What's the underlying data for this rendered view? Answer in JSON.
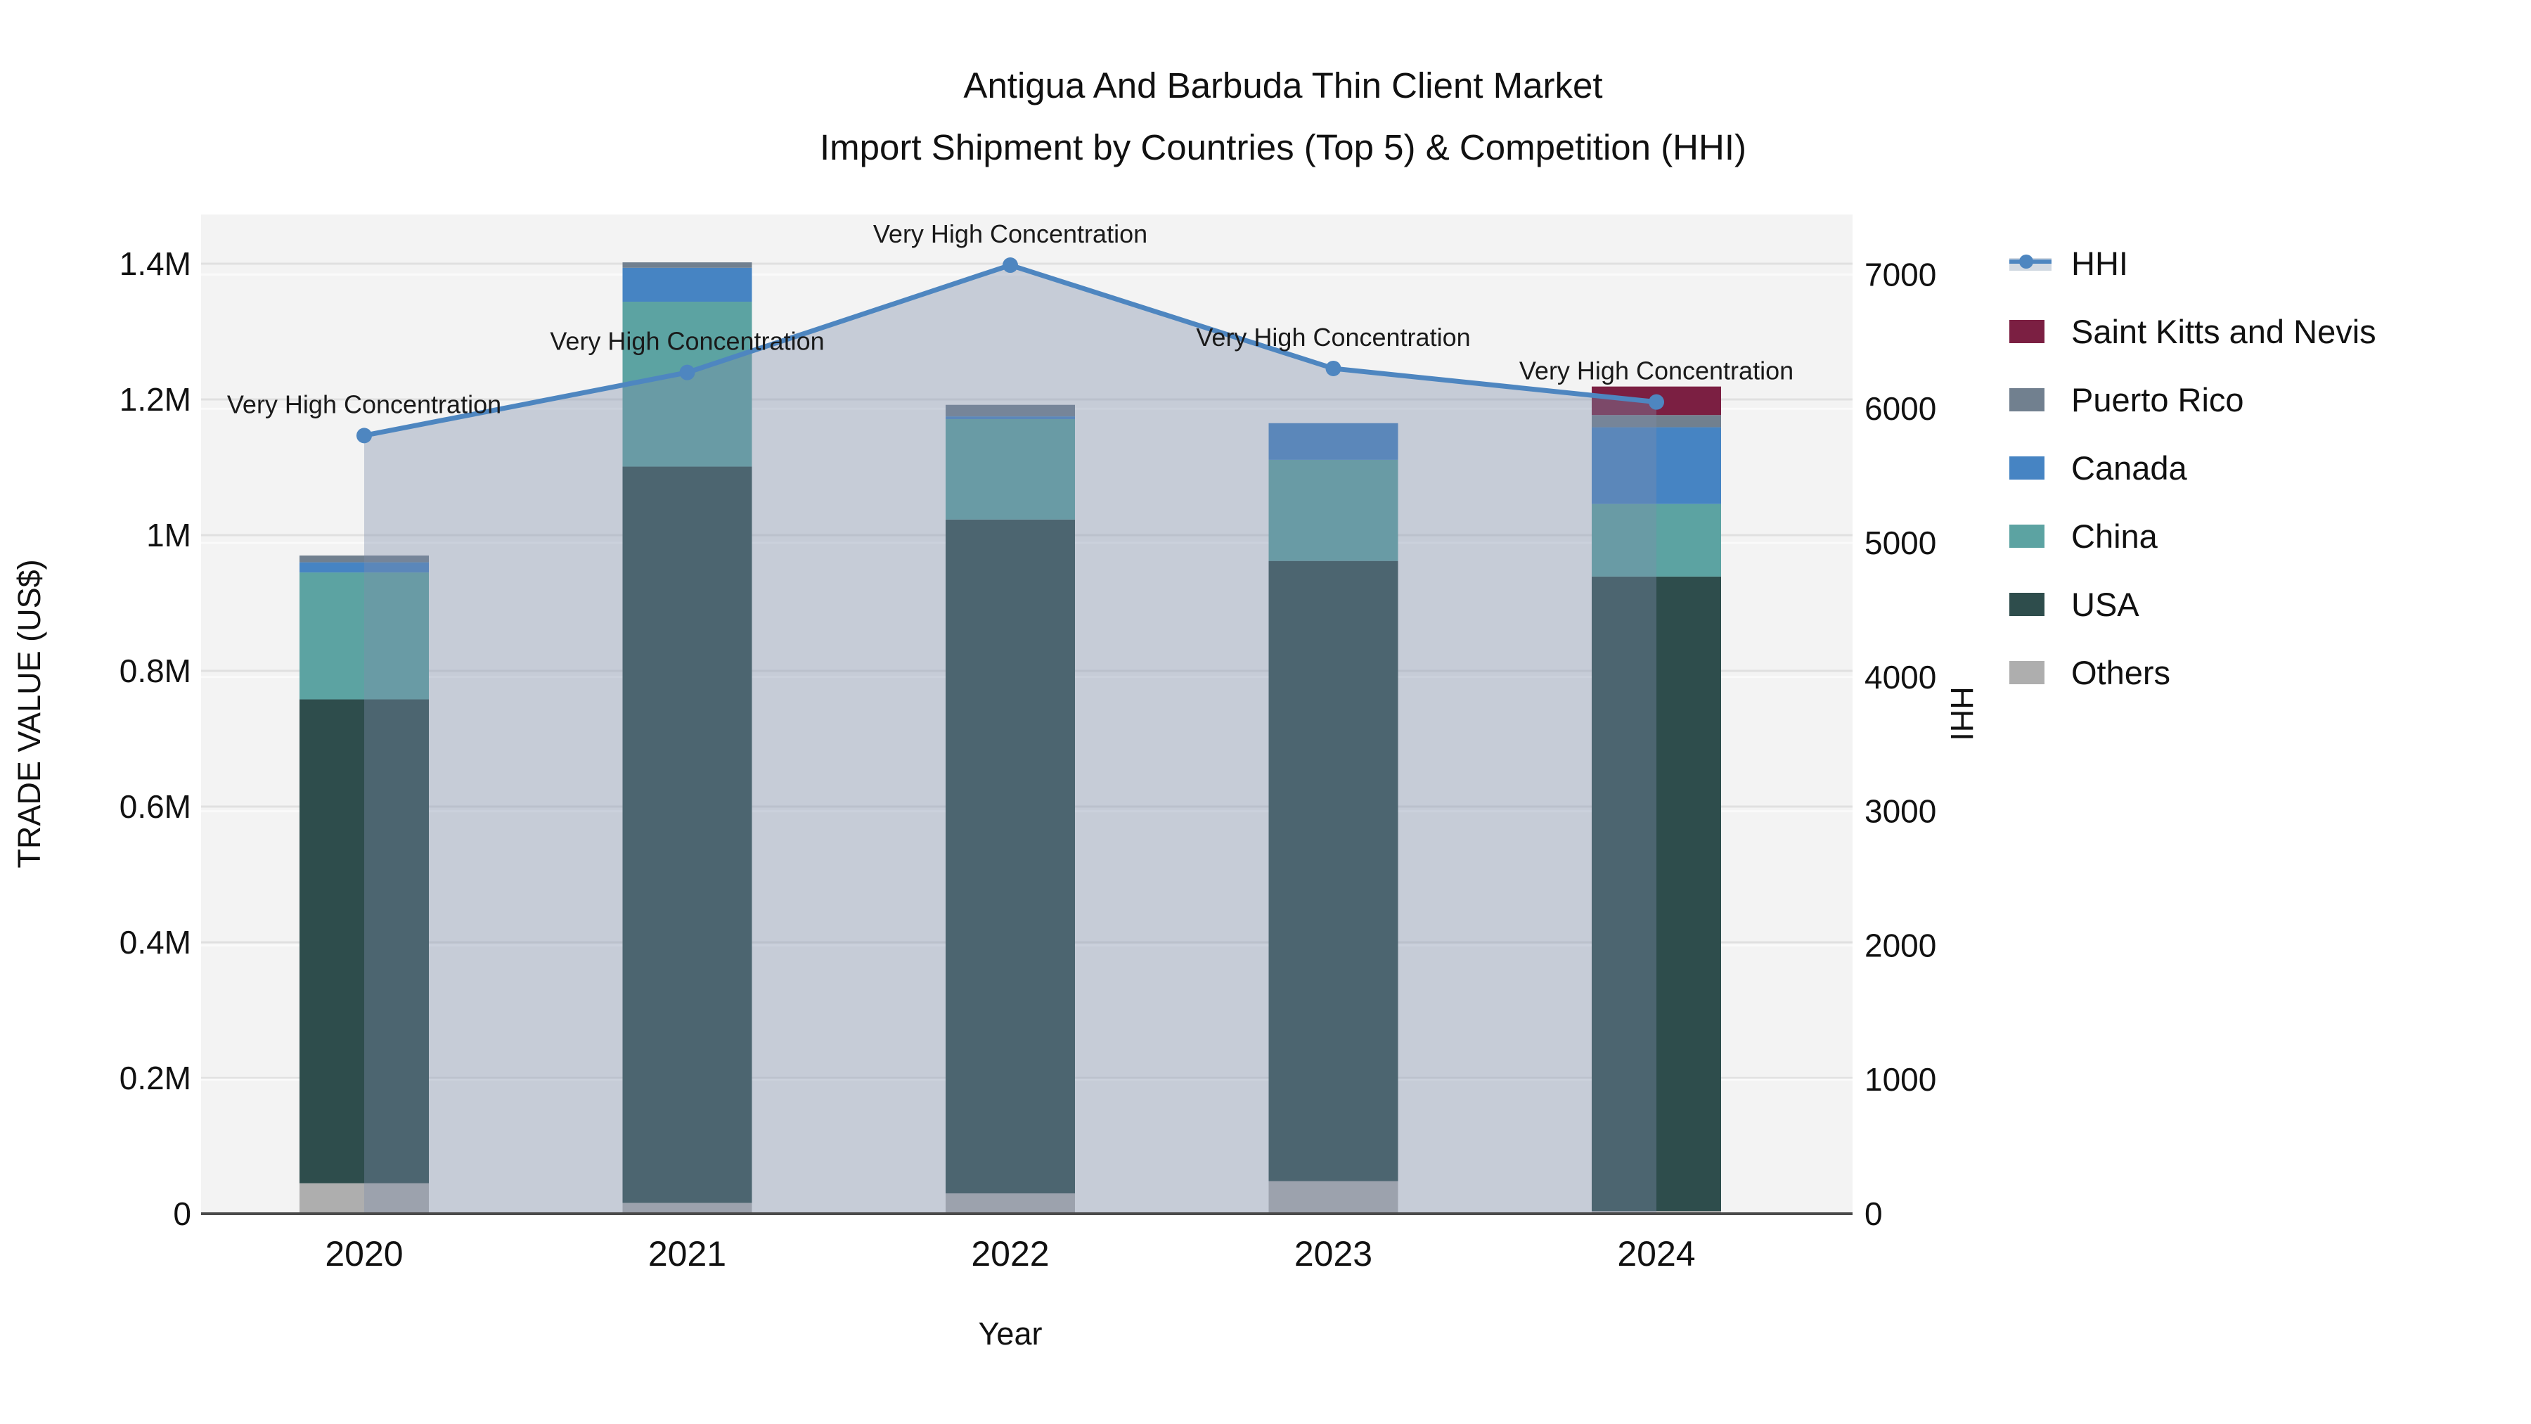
{
  "title": {
    "line1": "Antigua And Barbuda Thin Client Market",
    "line2": "Import Shipment by Countries (Top 5) & Competition (HHI)"
  },
  "axes": {
    "x_title": "Year",
    "y_left_title": "TRADE VALUE (US$)",
    "y_right_title": "HHI",
    "y_left_ticks": [
      {
        "value": 0,
        "label": "0"
      },
      {
        "value": 0.2,
        "label": "0.2M"
      },
      {
        "value": 0.4,
        "label": "0.4M"
      },
      {
        "value": 0.6,
        "label": "0.6M"
      },
      {
        "value": 0.8,
        "label": "0.8M"
      },
      {
        "value": 1.0,
        "label": "1M"
      },
      {
        "value": 1.2,
        "label": "1.2M"
      },
      {
        "value": 1.4,
        "label": "1.4M"
      }
    ],
    "y_right_ticks": [
      {
        "value": 0,
        "label": "0"
      },
      {
        "value": 1000,
        "label": "1000"
      },
      {
        "value": 2000,
        "label": "2000"
      },
      {
        "value": 3000,
        "label": "3000"
      },
      {
        "value": 4000,
        "label": "4000"
      },
      {
        "value": 5000,
        "label": "5000"
      },
      {
        "value": 6000,
        "label": "6000"
      },
      {
        "value": 7000,
        "label": "7000"
      }
    ]
  },
  "legend": {
    "items": [
      {
        "label": "HHI",
        "type": "line",
        "color": "#4E86C0",
        "band": "#D2D9E2"
      },
      {
        "label": "Saint Kitts and Nevis",
        "type": "box",
        "color": "#7B1F42"
      },
      {
        "label": "Puerto Rico",
        "type": "box",
        "color": "#71808F"
      },
      {
        "label": "Canada",
        "type": "box",
        "color": "#4684C3"
      },
      {
        "label": "China",
        "type": "box",
        "color": "#5CA3A2"
      },
      {
        "label": "USA",
        "type": "box",
        "color": "#2E4D4C"
      },
      {
        "label": "Others",
        "type": "box",
        "color": "#AEAEAE"
      }
    ]
  },
  "chart_data": {
    "type": "bar",
    "subtype": "stacked-bars-with-line-overlay",
    "title": "Antigua And Barbuda Thin Client Market Import Shipment by Countries (Top 5) & Competition (HHI)",
    "xlabel": "Year",
    "ylabel_left": "TRADE VALUE (US$)",
    "ylabel_right": "HHI",
    "categories": [
      "2020",
      "2021",
      "2022",
      "2023",
      "2024"
    ],
    "value_unit": "million US$",
    "stack_order_bottom_to_top": [
      "Others",
      "USA",
      "China",
      "Canada",
      "Puerto Rico",
      "Saint Kitts and Nevis"
    ],
    "series": [
      {
        "name": "Others",
        "values": [
          0.045,
          0.016,
          0.03,
          0.048,
          0.004
        ]
      },
      {
        "name": "USA",
        "values": [
          0.713,
          1.085,
          0.993,
          0.914,
          0.935
        ]
      },
      {
        "name": "China",
        "values": [
          0.187,
          0.243,
          0.148,
          0.149,
          0.107
        ]
      },
      {
        "name": "Canada",
        "values": [
          0.015,
          0.05,
          0.004,
          0.054,
          0.113
        ]
      },
      {
        "name": "Puerto Rico",
        "values": [
          0.01,
          0.008,
          0.017,
          0.0,
          0.018
        ]
      },
      {
        "name": "Saint Kitts and Nevis",
        "values": [
          0.0,
          0.0,
          0.0,
          0.0,
          0.042
        ]
      }
    ],
    "bar_totals": [
      0.97,
      1.402,
      1.192,
      1.165,
      1.219
    ],
    "line_series": {
      "name": "HHI",
      "axis": "right",
      "values": [
        5800,
        6270,
        7070,
        6300,
        6050
      ],
      "area_fill": true
    },
    "point_annotations": [
      "Very High Concentration",
      "Very High Concentration",
      "Very High Concentration",
      "Very High Concentration",
      "Very High Concentration"
    ],
    "ylim_left_musd": [
      0,
      1.47
    ],
    "ylim_right_hhi": [
      0,
      7450
    ],
    "grid": true,
    "legend_position": "right"
  },
  "colors": {
    "page_background": "#FFFFFF",
    "plot_background": "#F3F3F3",
    "grid_left": "#E0E0E0",
    "grid_right": "#FAFAFA",
    "spine": "#4A4A4A",
    "hhi_line": "#4E86C0",
    "hhi_area_fill": "rgba(125,142,170,0.38)",
    "annotation_text": "#1A1A1A",
    "tick_text": "#111111",
    "series": {
      "Others": "#AEAEAE",
      "USA": "#2E4D4C",
      "China": "#5CA3A2",
      "Canada": "#4684C3",
      "Puerto Rico": "#71808F",
      "Saint Kitts and Nevis": "#7B1F42"
    }
  }
}
